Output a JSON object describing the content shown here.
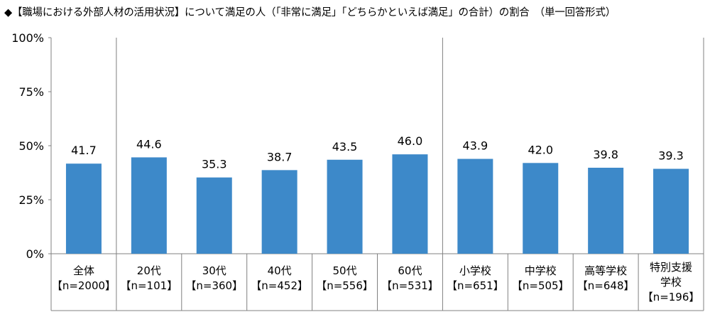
{
  "chart_data": {
    "type": "bar",
    "title": "◆【職場における外部人材の活用状況】について満足の人（「非常に満足」「どちらかといえば満足」の合計）の割合　（単一回答形式）",
    "y_ticks": [
      "100%",
      "75%",
      "50%",
      "25%",
      "0%"
    ],
    "ylim": [
      0,
      100
    ],
    "grid": false,
    "bar_color": "#3d89c9",
    "categories": [
      {
        "label": [
          "全体",
          "【n=2000】"
        ],
        "value": 41.7,
        "value_label": "41.7"
      },
      {
        "label": [
          "20代",
          "【n=101】"
        ],
        "value": 44.6,
        "value_label": "44.6"
      },
      {
        "label": [
          "30代",
          "【n=360】"
        ],
        "value": 35.3,
        "value_label": "35.3"
      },
      {
        "label": [
          "40代",
          "【n=452】"
        ],
        "value": 38.7,
        "value_label": "38.7"
      },
      {
        "label": [
          "50代",
          "【n=556】"
        ],
        "value": 43.5,
        "value_label": "43.5"
      },
      {
        "label": [
          "60代",
          "【n=531】"
        ],
        "value": 46.0,
        "value_label": "46.0"
      },
      {
        "label": [
          "小学校",
          "【n=651】"
        ],
        "value": 43.9,
        "value_label": "43.9"
      },
      {
        "label": [
          "中学校",
          "【n=505】"
        ],
        "value": 42.0,
        "value_label": "42.0"
      },
      {
        "label": [
          "高等学校",
          "【n=648】"
        ],
        "value": 39.8,
        "value_label": "39.8"
      },
      {
        "label": [
          "特別支援",
          "学校",
          "【n=196】"
        ],
        "value": 39.3,
        "value_label": "39.3"
      }
    ],
    "group_separators_after": [
      0,
      5
    ]
  }
}
